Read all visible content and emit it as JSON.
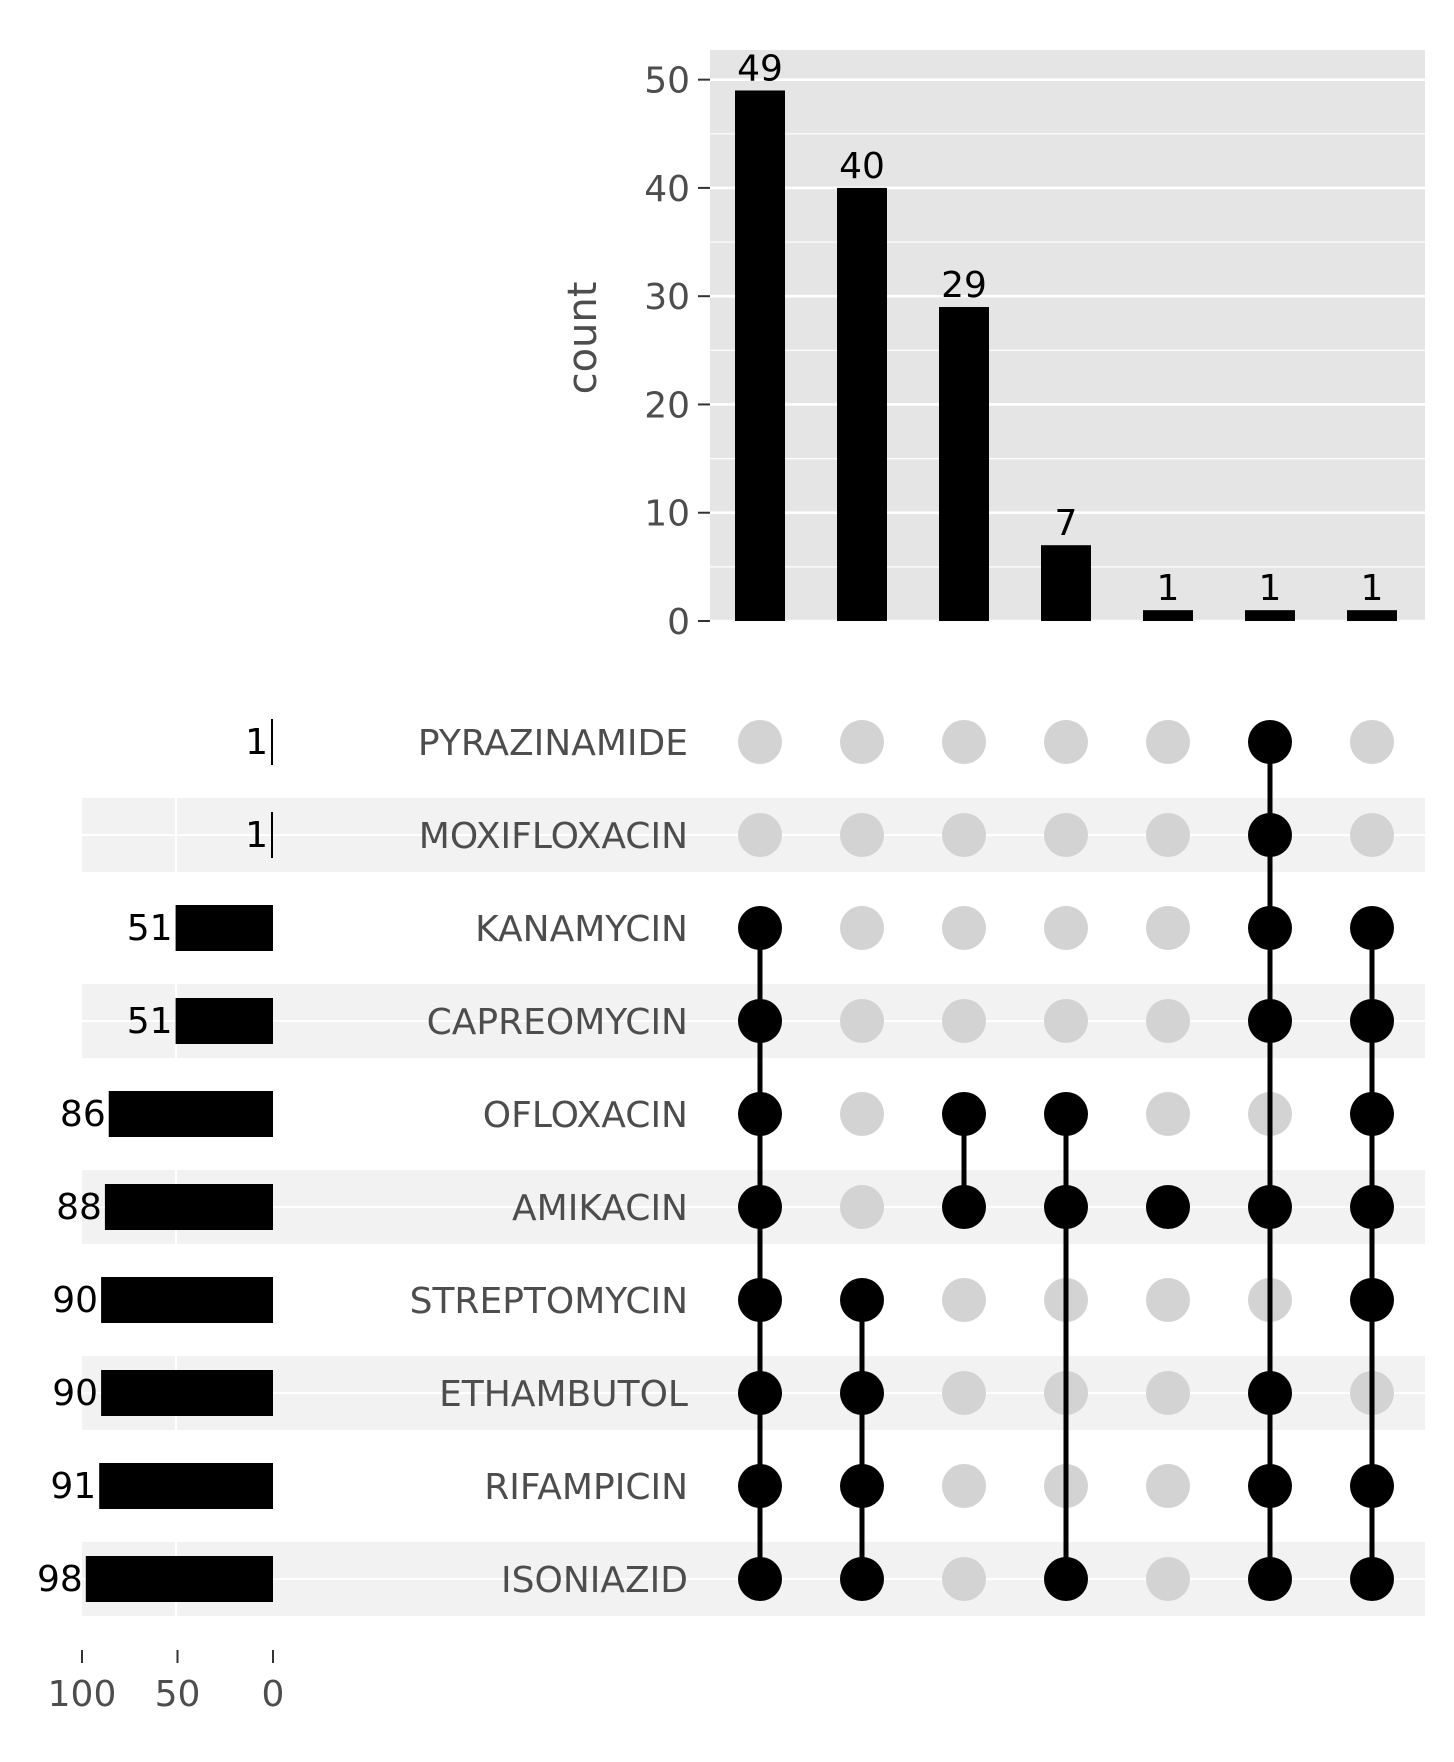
{
  "chart_data": {
    "type": "bar",
    "subtype": "upset",
    "intersections": {
      "ylabel": "count",
      "ylim": [
        0,
        52
      ],
      "yticks": [
        0,
        10,
        20,
        30,
        40,
        50
      ],
      "values": [
        49,
        40,
        29,
        7,
        1,
        1,
        1
      ],
      "data_labels": [
        "49",
        "40",
        "29",
        "7",
        "1",
        "1",
        "1"
      ],
      "sets": [
        [
          "KANAMYCIN",
          "CAPREOMYCIN",
          "OFLOXACIN",
          "AMIKACIN",
          "STREPTOMYCIN",
          "ETHAMBUTOL",
          "RIFAMPICIN",
          "ISONIAZID"
        ],
        [
          "STREPTOMYCIN",
          "ETHAMBUTOL",
          "RIFAMPICIN",
          "ISONIAZID"
        ],
        [
          "OFLOXACIN",
          "AMIKACIN"
        ],
        [
          "OFLOXACIN",
          "AMIKACIN",
          "ISONIAZID"
        ],
        [
          "AMIKACIN"
        ],
        [
          "PYRAZINAMIDE",
          "MOXIFLOXACIN",
          "KANAMYCIN",
          "CAPREOMYCIN",
          "AMIKACIN",
          "ETHAMBUTOL",
          "RIFAMPICIN",
          "ISONIAZID"
        ],
        [
          "KANAMYCIN",
          "CAPREOMYCIN",
          "OFLOXACIN",
          "AMIKACIN",
          "STREPTOMYCIN",
          "RIFAMPICIN",
          "ISONIAZID"
        ]
      ]
    },
    "set_sizes": {
      "categories": [
        "PYRAZINAMIDE",
        "MOXIFLOXACIN",
        "KANAMYCIN",
        "CAPREOMYCIN",
        "OFLOXACIN",
        "AMIKACIN",
        "STREPTOMYCIN",
        "ETHAMBUTOL",
        "RIFAMPICIN",
        "ISONIAZID"
      ],
      "values": [
        1,
        1,
        51,
        51,
        86,
        88,
        90,
        90,
        91,
        98
      ],
      "data_labels": [
        "1",
        "1",
        "51",
        "51",
        "86",
        "88",
        "90",
        "90",
        "91",
        "98"
      ],
      "xticks": [
        100,
        50,
        0
      ],
      "xlim": [
        0,
        98
      ]
    },
    "grid": true,
    "colors": {
      "bar": "#000000",
      "dot_active": "#000000",
      "dot_inactive": "#d3d3d3",
      "panel_bg": "#e5e5e5",
      "stripe": "#f2f2f2",
      "grid": "#ffffff",
      "tick_text": "#4d4d4d"
    }
  }
}
